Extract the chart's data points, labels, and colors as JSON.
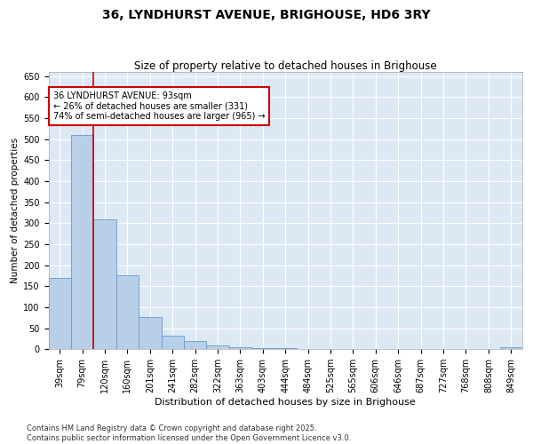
{
  "title": "36, LYNDHURST AVENUE, BRIGHOUSE, HD6 3RY",
  "subtitle": "Size of property relative to detached houses in Brighouse",
  "xlabel": "Distribution of detached houses by size in Brighouse",
  "ylabel": "Number of detached properties",
  "categories": [
    "39sqm",
    "79sqm",
    "120sqm",
    "160sqm",
    "201sqm",
    "241sqm",
    "282sqm",
    "322sqm",
    "363sqm",
    "403sqm",
    "444sqm",
    "484sqm",
    "525sqm",
    "565sqm",
    "606sqm",
    "646sqm",
    "687sqm",
    "727sqm",
    "768sqm",
    "808sqm",
    "849sqm"
  ],
  "values": [
    170,
    510,
    310,
    175,
    77,
    33,
    20,
    8,
    4,
    3,
    2,
    1,
    1,
    1,
    1,
    0,
    0,
    0,
    0,
    0,
    4
  ],
  "bar_color": "#b8cfe8",
  "bar_edge_color": "#6699cc",
  "fig_background": "#ffffff",
  "ax_background": "#dde8f5",
  "grid_color": "#ffffff",
  "property_line_x": 1.5,
  "property_line_color": "#cc0000",
  "annotation_text": "36 LYNDHURST AVENUE: 93sqm\n← 26% of detached houses are smaller (331)\n74% of semi-detached houses are larger (965) →",
  "annotation_box_color": "#cc0000",
  "ylim": [
    0,
    660
  ],
  "yticks": [
    0,
    50,
    100,
    150,
    200,
    250,
    300,
    350,
    400,
    450,
    500,
    550,
    600,
    650
  ],
  "footnote_line1": "Contains HM Land Registry data © Crown copyright and database right 2025.",
  "footnote_line2": "Contains public sector information licensed under the Open Government Licence v3.0.",
  "title_fontsize": 10,
  "subtitle_fontsize": 8.5,
  "xlabel_fontsize": 8,
  "ylabel_fontsize": 7.5,
  "tick_fontsize": 7,
  "annotation_fontsize": 7,
  "footnote_fontsize": 6
}
